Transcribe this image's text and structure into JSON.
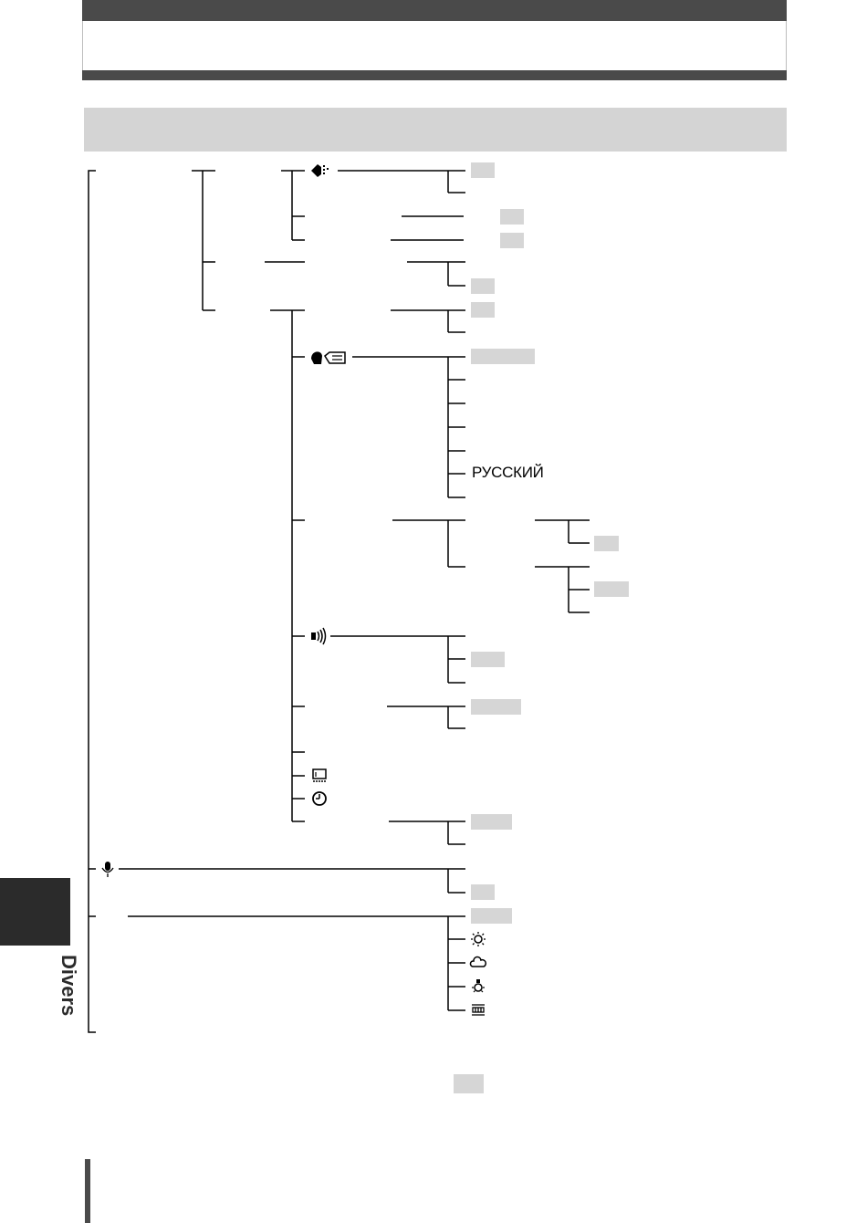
{
  "side_tab": {
    "label": "Divers"
  },
  "tree": {
    "language_items": [
      {
        "label": "РУССКИЙ"
      }
    ]
  },
  "icons": {
    "record_view": "screen-settings-icon",
    "language": "language-icon",
    "beep": "beep-speaker-icon",
    "frame": "frame-icon",
    "clock": "clock-icon",
    "microphone": "microphone-icon",
    "white_balance": [
      "sun-icon",
      "cloud-icon",
      "tungsten-bulb-icon",
      "fluorescent-icon"
    ]
  }
}
